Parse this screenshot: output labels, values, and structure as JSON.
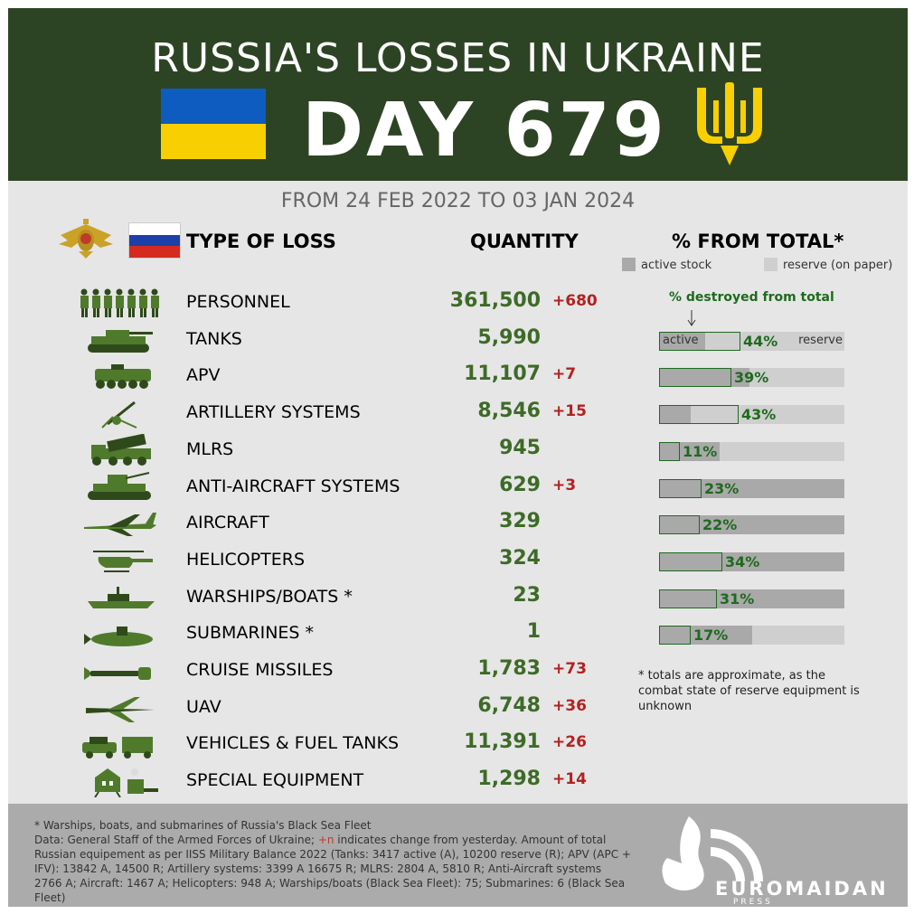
{
  "header": {
    "title": "RUSSIA'S LOSSES IN UKRAINE",
    "day": "DAY 679",
    "flag_colors": [
      "#0e5cbf",
      "#f8cf00"
    ],
    "trident_color": "#f8cf00"
  },
  "subtitle": "FROM 24 FEB 2022 TO 03 JAN 2024",
  "columns": {
    "type": "TYPE OF LOSS",
    "quantity": "QUANTITY",
    "percent": "% FROM TOTAL*"
  },
  "legend": {
    "active": "active stock",
    "reserve": "reserve (on paper)"
  },
  "destroyed_heading": "% destroyed from total",
  "bar_labels": {
    "active": "active",
    "reserve": "reserve"
  },
  "rows": [
    {
      "icon": "soldiers-icon",
      "label": "PERSONNEL",
      "quantity": "361,500",
      "change": "+680"
    },
    {
      "icon": "tank-icon",
      "label": "TANKS",
      "quantity": "5,990",
      "change": "",
      "percent": "44%",
      "active_frac": 0.251,
      "destroyed_frac": 0.44
    },
    {
      "icon": "apv-icon",
      "label": "APV",
      "quantity": "11,107",
      "change": "+7",
      "percent": "39%",
      "active_frac": 0.488,
      "destroyed_frac": 0.39
    },
    {
      "icon": "artillery-icon",
      "label": "ARTILLERY SYSTEMS",
      "quantity": "8,546",
      "change": "+15",
      "percent": "43%",
      "active_frac": 0.169,
      "destroyed_frac": 0.43
    },
    {
      "icon": "mlrs-icon",
      "label": "MLRS",
      "quantity": "945",
      "change": "",
      "percent": "11%",
      "active_frac": 0.326,
      "destroyed_frac": 0.11
    },
    {
      "icon": "anti-aircraft-icon",
      "label": "ANTI-AIRCRAFT SYSTEMS",
      "quantity": "629",
      "change": "+3",
      "percent": "23%",
      "active_frac": 1.0,
      "destroyed_frac": 0.23
    },
    {
      "icon": "aircraft-icon",
      "label": "AIRCRAFT",
      "quantity": "329",
      "change": "",
      "percent": "22%",
      "active_frac": 1.0,
      "destroyed_frac": 0.22
    },
    {
      "icon": "helicopter-icon",
      "label": "HELICOPTERS",
      "quantity": "324",
      "change": "",
      "percent": "34%",
      "active_frac": 1.0,
      "destroyed_frac": 0.34
    },
    {
      "icon": "warship-icon",
      "label": "WARSHIPS/BOATS *",
      "quantity": "23",
      "change": "",
      "percent": "31%",
      "active_frac": 1.0,
      "destroyed_frac": 0.31
    },
    {
      "icon": "submarine-icon",
      "label": "SUBMARINES *",
      "quantity": "1",
      "change": "",
      "percent": "17%",
      "active_frac": 0.5,
      "destroyed_frac": 0.17
    },
    {
      "icon": "cruise-missile-icon",
      "label": "CRUISE MISSILES",
      "quantity": "1,783",
      "change": "+73"
    },
    {
      "icon": "uav-icon",
      "label": "UAV",
      "quantity": "6,748",
      "change": "+36"
    },
    {
      "icon": "vehicles-icon",
      "label": "VEHICLES & FUEL TANKS",
      "quantity": "11,391",
      "change": "+26"
    },
    {
      "icon": "special-equipment-icon",
      "label": "SPECIAL EQUIPMENT",
      "quantity": "1,298",
      "change": "+14"
    }
  ],
  "note": "* totals are approximate, as the combat state of reserve equipment is unknown",
  "footer": {
    "line1": "* Warships, boats, and submarines of Russia's Black Sea Fleet",
    "line2_a": "Data: General Staff of the Armed Forces of Ukraine; ",
    "line2_red": "+n",
    "line2_b": " indicates change from yesterday. Amount of total Russian equipement as per IISS Military Balance 2022 (Tanks: 3417 active (A), 10200 reserve (R); APV (APC + IFV): 13842 A, 14500 R; Artillery systems: 3399 A 16675 R; MLRS: 2804 A, 5810 R; Anti-Aircraft systems 2766 A; Aircraft: 1467 A; Helicopters: 948 A; Warships/boats (Black Sea Fleet): 75; Submarines: 6 (Black Sea Fleet)",
    "logo_name": "EUROMAIDAN",
    "logo_sub": "PRESS"
  },
  "colors": {
    "header_bg": "#2d4424",
    "quantity_green": "#3d6b27",
    "change_red": "#b22222",
    "active_gray": "#a9a9a9",
    "reserve_gray": "#cfcfcf",
    "destroyed_outline": "#1e6a1e"
  }
}
